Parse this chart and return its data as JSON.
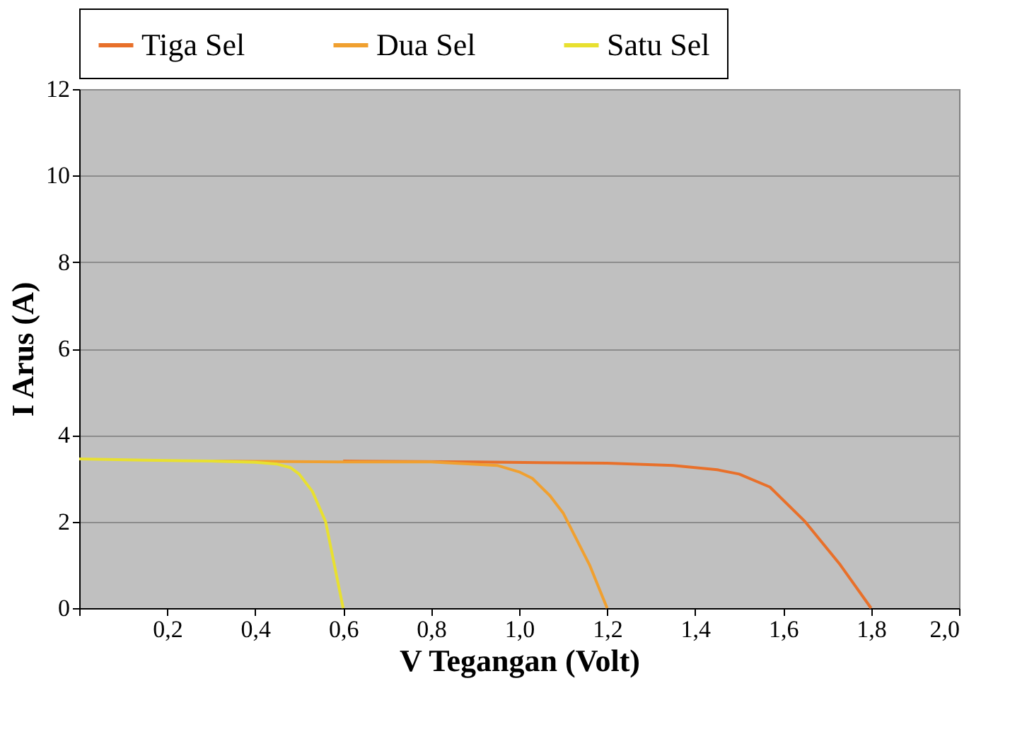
{
  "chart_data": {
    "type": "line",
    "xlabel": "V Tegangan (Volt)",
    "ylabel": "I Arus (A)",
    "xlim": [
      0,
      2.0
    ],
    "ylim": [
      0,
      12
    ],
    "xticks": [
      {
        "value": 0,
        "label": null
      },
      {
        "value": 0.2,
        "label": "0,2"
      },
      {
        "value": 0.4,
        "label": "0,4"
      },
      {
        "value": 0.6,
        "label": "0,6"
      },
      {
        "value": 0.8,
        "label": "0,8"
      },
      {
        "value": 1.0,
        "label": "1,0"
      },
      {
        "value": 1.2,
        "label": "1,2"
      },
      {
        "value": 1.4,
        "label": "1,4"
      },
      {
        "value": 1.6,
        "label": "1,6"
      },
      {
        "value": 1.8,
        "label": "1,8"
      },
      {
        "value": 2.0,
        "label": "2,0"
      }
    ],
    "yticks": [
      0,
      2,
      4,
      6,
      8,
      10,
      12
    ],
    "grid": "y",
    "legend": "top",
    "line_style": "solid",
    "marker": "none",
    "series": [
      {
        "name": "Tiga Sel",
        "color": "#e8702a",
        "x": [
          0.6,
          0.9,
          1.2,
          1.35,
          1.45,
          1.5,
          1.57,
          1.65,
          1.73,
          1.8
        ],
        "values": [
          3.4,
          3.38,
          3.35,
          3.3,
          3.2,
          3.1,
          2.8,
          2.0,
          1.0,
          0
        ]
      },
      {
        "name": "Dua Sel",
        "color": "#f0a030",
        "x": [
          0.3,
          0.6,
          0.8,
          0.95,
          1.0,
          1.03,
          1.07,
          1.1,
          1.16,
          1.2
        ],
        "values": [
          3.4,
          3.38,
          3.38,
          3.3,
          3.15,
          3.0,
          2.6,
          2.2,
          1.0,
          0
        ]
      },
      {
        "name": "Satu Sel",
        "color": "#e8e030",
        "x": [
          0,
          0.15,
          0.3,
          0.4,
          0.45,
          0.48,
          0.5,
          0.53,
          0.56,
          0.58,
          0.6
        ],
        "values": [
          3.45,
          3.42,
          3.4,
          3.37,
          3.33,
          3.25,
          3.1,
          2.7,
          2.0,
          1.0,
          0
        ]
      }
    ]
  }
}
